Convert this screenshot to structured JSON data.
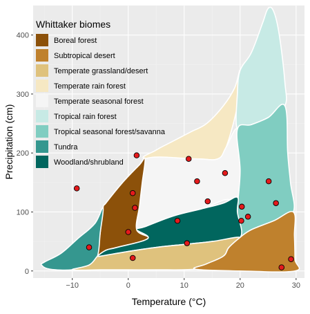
{
  "chart_data": {
    "type": "scatter",
    "xlabel": "Temperature (°C)",
    "ylabel": "Precipitation (cm)",
    "xlim": [
      -17,
      31.5
    ],
    "ylim": [
      -12,
      450
    ],
    "x_ticks": [
      -10,
      0,
      10,
      20,
      30
    ],
    "y_ticks": [
      0,
      100,
      200,
      300,
      400
    ],
    "grid": true,
    "legend": {
      "title": "Whittaker biomes",
      "position": "top-left",
      "entries": [
        {
          "label": "Boreal forest",
          "color": "#8C510A"
        },
        {
          "label": "Subtropical desert",
          "color": "#BF812D"
        },
        {
          "label": "Temperate grassland/desert",
          "color": "#DFC27D"
        },
        {
          "label": "Temperate rain forest",
          "color": "#F6E8C3"
        },
        {
          "label": "Temperate seasonal forest",
          "color": "#F5F5F5"
        },
        {
          "label": "Tropical rain forest",
          "color": "#C7EAE5"
        },
        {
          "label": "Tropical seasonal forest/savanna",
          "color": "#80CDC1"
        },
        {
          "label": "Tundra",
          "color": "#35978F"
        },
        {
          "label": "Woodland/shrubland",
          "color": "#01665E"
        }
      ]
    },
    "biomes": [
      {
        "name": "Temperate rain forest",
        "color": "#F6E8C3",
        "polygon": [
          [
            3,
            190
          ],
          [
            5,
            205
          ],
          [
            8,
            220
          ],
          [
            11,
            235
          ],
          [
            14,
            250
          ],
          [
            17,
            280
          ],
          [
            19,
            310
          ],
          [
            20,
            340
          ],
          [
            19.5,
            280
          ],
          [
            17.5,
            210
          ],
          [
            16,
            190
          ],
          [
            12,
            190
          ]
        ]
      },
      {
        "name": "Tropical rain forest",
        "color": "#C7EAE5",
        "polygon": [
          [
            19.5,
            240
          ],
          [
            19.5,
            300
          ],
          [
            20,
            340
          ],
          [
            22,
            370
          ],
          [
            24,
            420
          ],
          [
            25,
            445
          ],
          [
            26,
            440
          ],
          [
            27,
            400
          ],
          [
            28,
            320
          ],
          [
            28,
            280
          ],
          [
            25,
            260
          ],
          [
            22,
            248
          ]
        ]
      },
      {
        "name": "Temperate seasonal forest",
        "color": "#F5F5F5",
        "polygon": [
          [
            3,
            190
          ],
          [
            12,
            190
          ],
          [
            16,
            190
          ],
          [
            17.5,
            210
          ],
          [
            19.5,
            240
          ],
          [
            20,
            170
          ],
          [
            19.5,
            125
          ],
          [
            17,
            120
          ],
          [
            13,
            105
          ],
          [
            8,
            93
          ],
          [
            3,
            75
          ],
          [
            1.5,
            70
          ],
          [
            2,
            110
          ],
          [
            2.5,
            150
          ]
        ]
      },
      {
        "name": "Tropical seasonal forest/savanna",
        "color": "#80CDC1",
        "polygon": [
          [
            19.5,
            240
          ],
          [
            22,
            248
          ],
          [
            25,
            260
          ],
          [
            28,
            280
          ],
          [
            28.5,
            200
          ],
          [
            29,
            150
          ],
          [
            29.5,
            100
          ],
          [
            26,
            85
          ],
          [
            22,
            70
          ],
          [
            20,
            57
          ],
          [
            19.5,
            100
          ],
          [
            20,
            170
          ]
        ]
      },
      {
        "name": "Boreal forest",
        "color": "#8C510A",
        "polygon": [
          [
            -4.5,
            107
          ],
          [
            -4,
            115
          ],
          [
            -1,
            150
          ],
          [
            2,
            180
          ],
          [
            3,
            190
          ],
          [
            2.5,
            150
          ],
          [
            2,
            110
          ],
          [
            1.5,
            70
          ],
          [
            3.5,
            55
          ],
          [
            -2,
            40
          ],
          [
            -4,
            35
          ],
          [
            -5.5,
            25
          ],
          [
            -5,
            65
          ]
        ]
      },
      {
        "name": "Woodland/shrubland",
        "color": "#01665E",
        "polygon": [
          [
            -5.5,
            25
          ],
          [
            -4,
            35
          ],
          [
            -2,
            40
          ],
          [
            3.5,
            55
          ],
          [
            1.5,
            70
          ],
          [
            3,
            75
          ],
          [
            8,
            93
          ],
          [
            13,
            105
          ],
          [
            17,
            115
          ],
          [
            19.5,
            125
          ],
          [
            19.5,
            100
          ],
          [
            20,
            57
          ],
          [
            15,
            50
          ],
          [
            10,
            45
          ],
          [
            5,
            40
          ],
          [
            0,
            33
          ],
          [
            -5,
            25
          ]
        ]
      },
      {
        "name": "Tundra",
        "color": "#35978F",
        "polygon": [
          [
            -15.5,
            10
          ],
          [
            -15,
            15
          ],
          [
            -12,
            30
          ],
          [
            -9,
            55
          ],
          [
            -6,
            80
          ],
          [
            -4.5,
            107
          ],
          [
            -5,
            65
          ],
          [
            -5.5,
            25
          ],
          [
            -7,
            10
          ],
          [
            -10,
            2
          ],
          [
            -14,
            3
          ]
        ]
      },
      {
        "name": "Temperate grassland/desert",
        "color": "#DFC27D",
        "polygon": [
          [
            -10,
            2
          ],
          [
            -7,
            10
          ],
          [
            -5.5,
            25
          ],
          [
            -5,
            25
          ],
          [
            0,
            33
          ],
          [
            5,
            40
          ],
          [
            10,
            45
          ],
          [
            15,
            50
          ],
          [
            20,
            57
          ],
          [
            18,
            40
          ],
          [
            17,
            25
          ],
          [
            14,
            12
          ],
          [
            12,
            3
          ],
          [
            5,
            2
          ],
          [
            0,
            2
          ],
          [
            -5,
            2
          ]
        ]
      },
      {
        "name": "Subtropical desert",
        "color": "#BF812D",
        "polygon": [
          [
            12,
            3
          ],
          [
            14,
            12
          ],
          [
            17,
            25
          ],
          [
            18,
            40
          ],
          [
            20,
            57
          ],
          [
            22,
            70
          ],
          [
            26,
            85
          ],
          [
            29.5,
            100
          ],
          [
            29.7,
            60
          ],
          [
            29.8,
            20
          ],
          [
            29.8,
            0
          ],
          [
            20,
            0
          ]
        ]
      }
    ],
    "points": [
      {
        "x": -9.2,
        "y": 140
      },
      {
        "x": -7,
        "y": 40
      },
      {
        "x": 0,
        "y": 66
      },
      {
        "x": 0.8,
        "y": 132
      },
      {
        "x": 1.2,
        "y": 107
      },
      {
        "x": 1.5,
        "y": 196
      },
      {
        "x": 0.8,
        "y": 22
      },
      {
        "x": 8.8,
        "y": 85
      },
      {
        "x": 10.8,
        "y": 190
      },
      {
        "x": 12.3,
        "y": 152
      },
      {
        "x": 14.2,
        "y": 118
      },
      {
        "x": 17.3,
        "y": 166
      },
      {
        "x": 10.5,
        "y": 47
      },
      {
        "x": 20.3,
        "y": 109
      },
      {
        "x": 20.2,
        "y": 85
      },
      {
        "x": 21.4,
        "y": 92
      },
      {
        "x": 25.1,
        "y": 152
      },
      {
        "x": 26.4,
        "y": 115
      },
      {
        "x": 27.4,
        "y": 6
      },
      {
        "x": 29.1,
        "y": 20
      }
    ]
  },
  "colors": {
    "panel_background": "#EBEBEB",
    "grid_major": "#FFFFFF",
    "grid_minor": "#F2F2F2",
    "point_fill": "#E41A1C",
    "point_stroke": "#000000",
    "biome_outline": "#FFFFFF"
  }
}
